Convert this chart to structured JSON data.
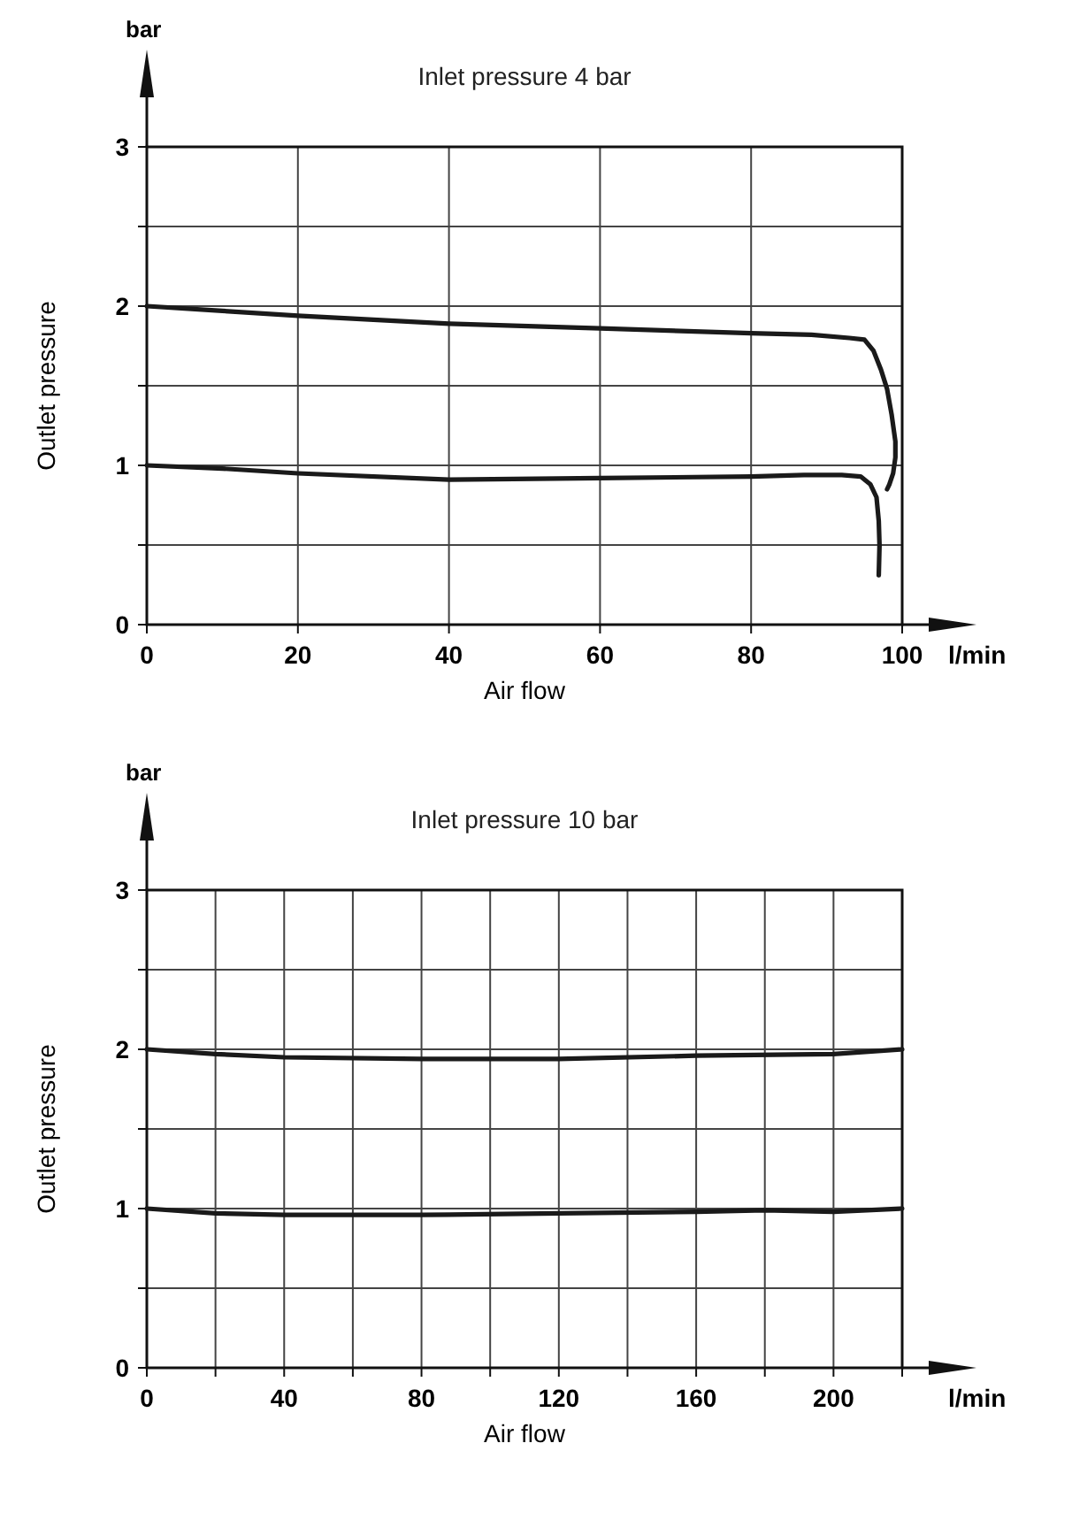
{
  "chart_data": [
    {
      "type": "line",
      "title": "Inlet pressure 4 bar",
      "xlabel": "Air flow",
      "ylabel": "Outlet pressure",
      "annotations": [
        "bar",
        "l/min"
      ],
      "xlim": [
        0,
        100
      ],
      "xticks": [
        0,
        20,
        40,
        60,
        80,
        100
      ],
      "ylim": [
        0,
        3
      ],
      "yticks": [
        0,
        {
          "value": 0.5,
          "label": null
        },
        1,
        {
          "value": 1.5,
          "label": null
        },
        2,
        {
          "value": 2.5,
          "label": null
        },
        3
      ],
      "grid": true,
      "marker": "none",
      "line_style": "solid",
      "series": [
        {
          "color": "#1a1a1a",
          "x": [
            0,
            10,
            20,
            40,
            60,
            80,
            88,
            93,
            95,
            96.2,
            97.2,
            98,
            98.6,
            99.1,
            99.1,
            98.8,
            98.3,
            98
          ],
          "values": [
            2,
            1.97,
            1.94,
            1.89,
            1.86,
            1.83,
            1.82,
            1.8,
            1.79,
            1.72,
            1.6,
            1.48,
            1.32,
            1.15,
            1.05,
            0.95,
            0.88,
            0.85
          ]
        },
        {
          "color": "#1a1a1a",
          "x": [
            0,
            10,
            20,
            40,
            60,
            80,
            87,
            92,
            94.5,
            95.8,
            96.6,
            96.9,
            97,
            96.9
          ],
          "values": [
            1,
            0.98,
            0.95,
            0.91,
            0.92,
            0.93,
            0.94,
            0.94,
            0.93,
            0.88,
            0.8,
            0.65,
            0.5,
            0.31
          ]
        }
      ]
    },
    {
      "type": "line",
      "title": "Inlet pressure 10 bar",
      "xlabel": "Air flow",
      "ylabel": "Outlet pressure",
      "annotations": [
        "bar",
        "l/min"
      ],
      "xlim": [
        0,
        220
      ],
      "xticks": [
        0,
        {
          "value": 20,
          "label": null
        },
        40,
        {
          "value": 60,
          "label": null
        },
        80,
        {
          "value": 100,
          "label": null
        },
        120,
        {
          "value": 140,
          "label": null
        },
        160,
        {
          "value": 180,
          "label": null
        },
        200,
        {
          "value": 220,
          "label": null
        }
      ],
      "ylim": [
        0,
        3
      ],
      "yticks": [
        0,
        {
          "value": 0.5,
          "label": null
        },
        1,
        {
          "value": 1.5,
          "label": null
        },
        2,
        {
          "value": 2.5,
          "label": null
        },
        3
      ],
      "grid": true,
      "marker": "none",
      "line_style": "solid",
      "series": [
        {
          "color": "#1a1a1a",
          "x": [
            0,
            20,
            40,
            80,
            120,
            160,
            200,
            220
          ],
          "values": [
            2,
            1.97,
            1.95,
            1.94,
            1.94,
            1.96,
            1.97,
            2
          ]
        },
        {
          "color": "#1a1a1a",
          "x": [
            0,
            20,
            40,
            80,
            120,
            160,
            180,
            200,
            220
          ],
          "values": [
            1,
            0.97,
            0.96,
            0.96,
            0.97,
            0.98,
            0.99,
            0.98,
            1
          ]
        }
      ]
    }
  ]
}
